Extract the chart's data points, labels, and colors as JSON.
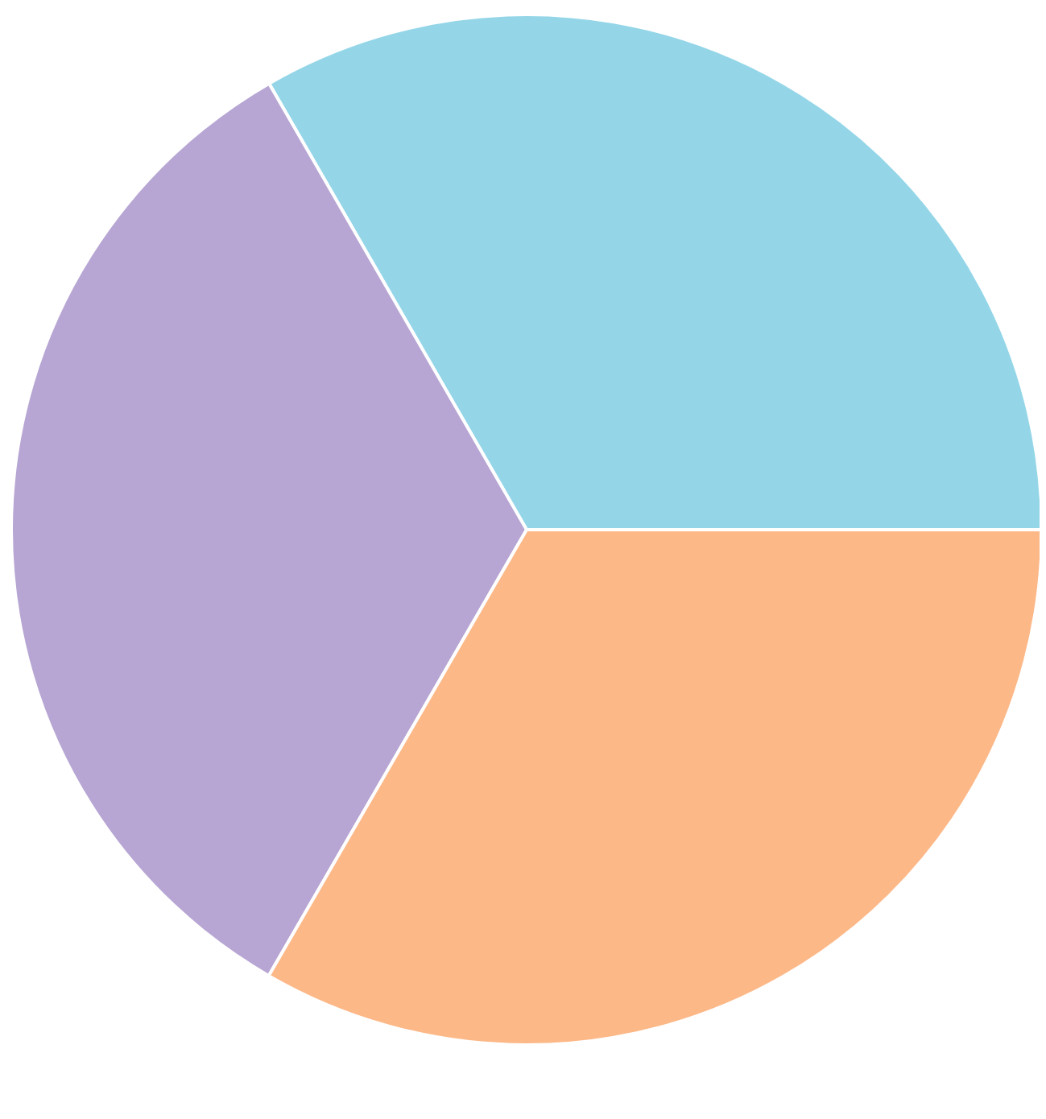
{
  "chart_data": {
    "type": "pie",
    "categories": [
      null,
      null,
      null
    ],
    "values": [
      33.33,
      33.33,
      33.34
    ],
    "colors": [
      "#94d6e8",
      "#b7a6d3",
      "#fdb888"
    ]
  }
}
